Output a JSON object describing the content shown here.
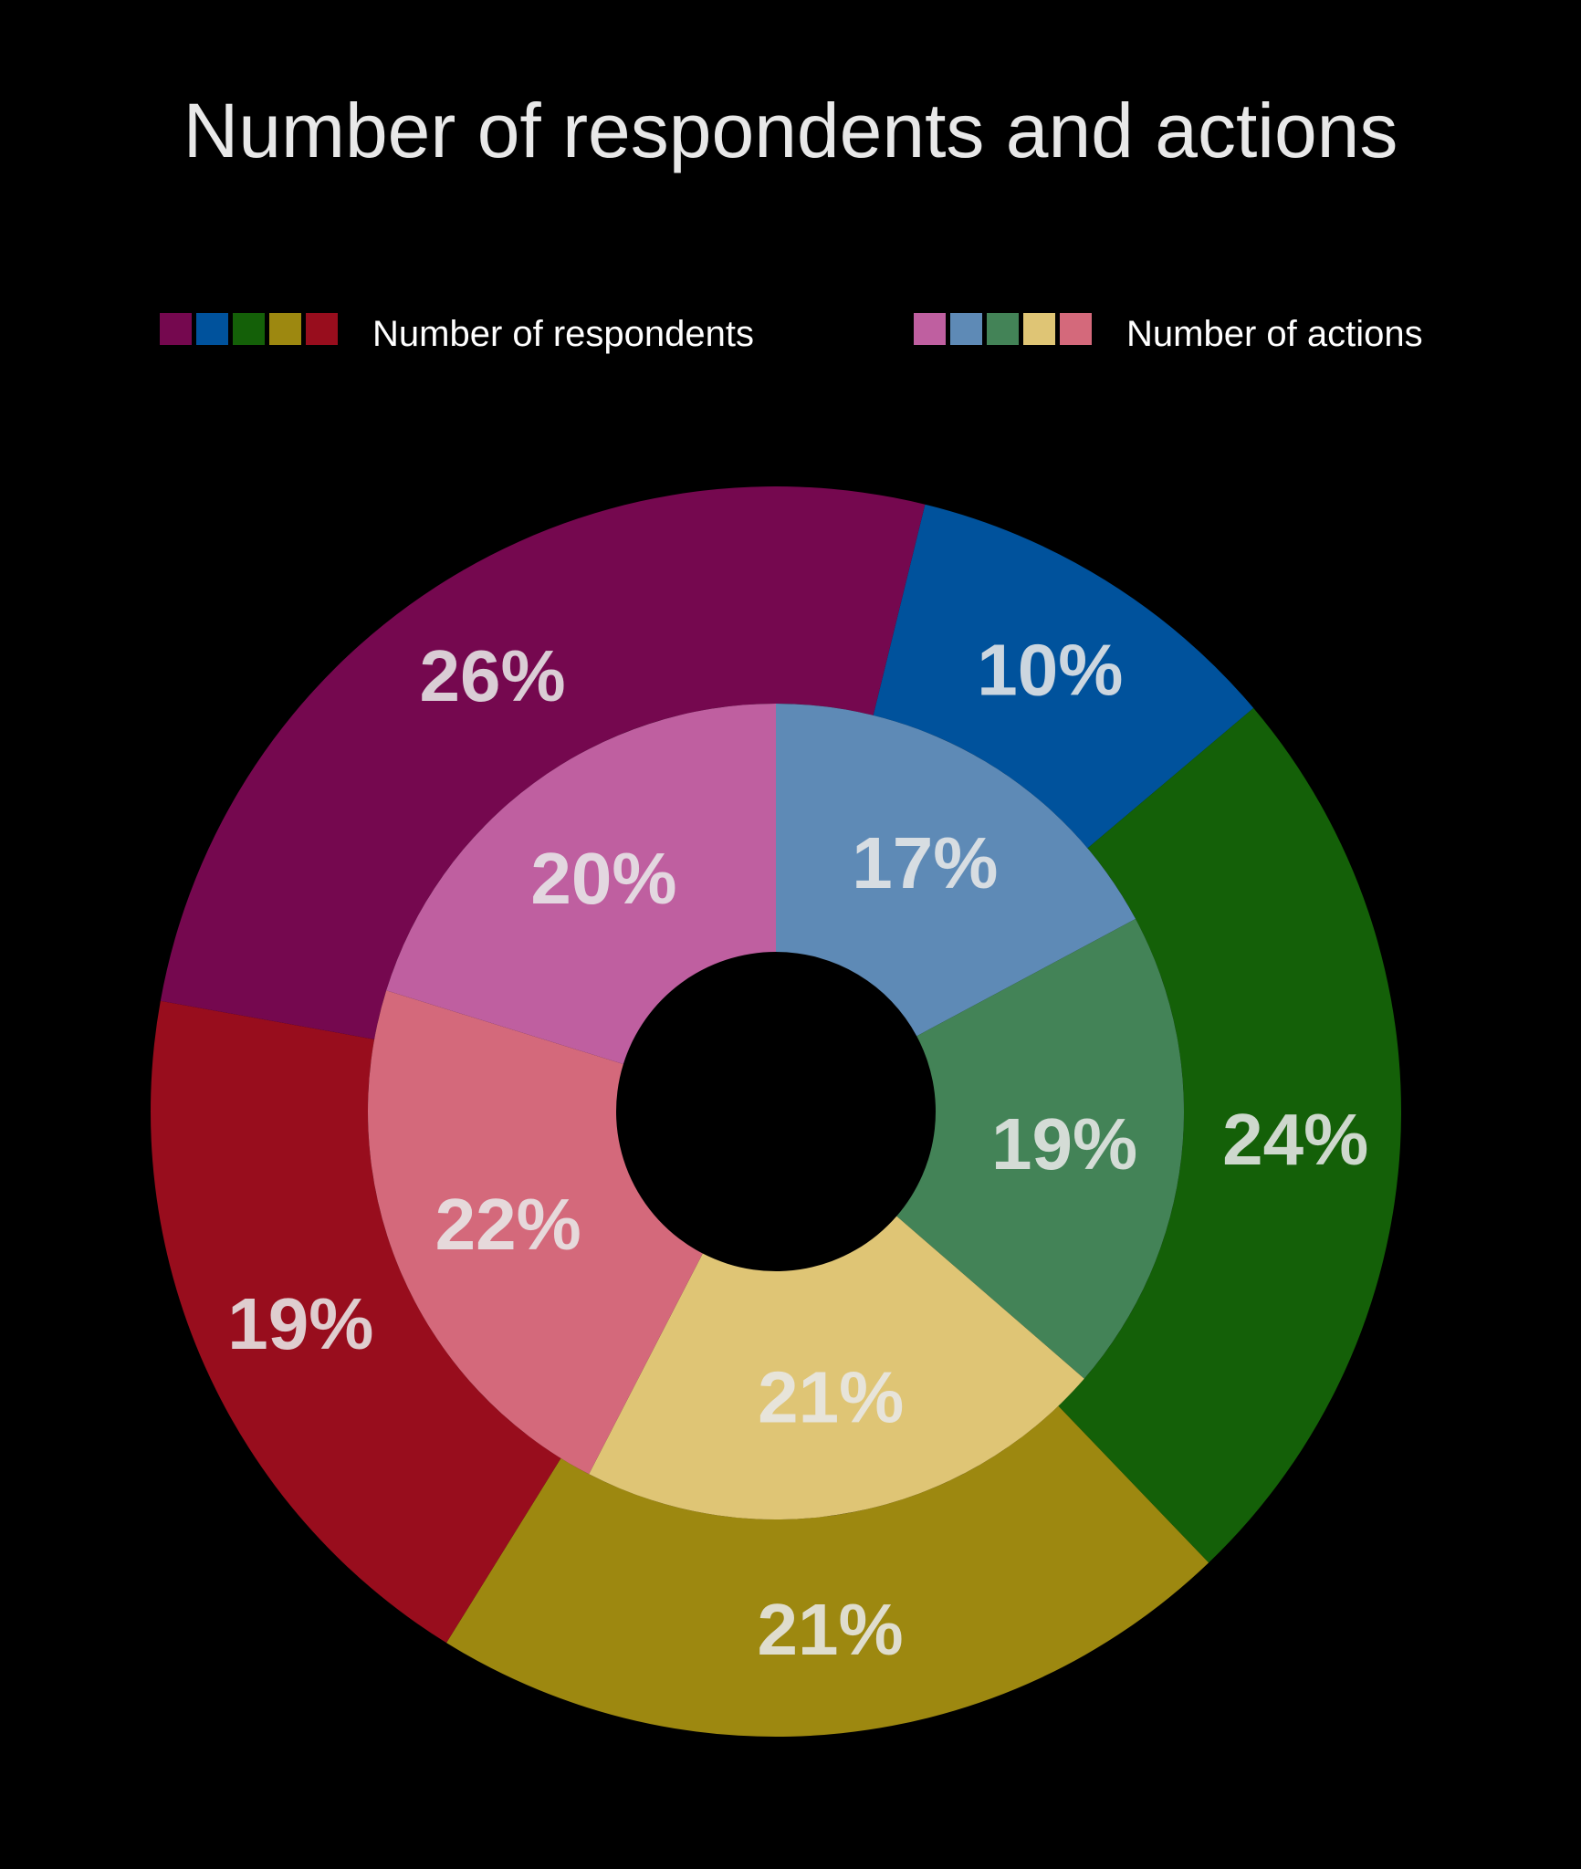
{
  "chart_data": {
    "type": "pie",
    "variant": "nested-donut",
    "title": "Number of respondents and actions",
    "legend": [
      {
        "label": "Number of respondents",
        "colors": [
          "#75084f",
          "#00529c",
          "#146008",
          "#9d8810",
          "#980d1d"
        ]
      },
      {
        "label": "Number of actions",
        "colors": [
          "#bf5fa0",
          "#5e8ab6",
          "#438357",
          "#dfc575",
          "#d4697b"
        ]
      }
    ],
    "series": [
      {
        "name": "Number of respondents",
        "ring": "outer",
        "values": [
          10,
          24,
          21,
          19,
          26
        ],
        "labels": [
          "10%",
          "24%",
          "21%",
          "19%",
          "26%"
        ],
        "colors": [
          "#00529c",
          "#146008",
          "#9d8810",
          "#980d1d",
          "#75084f"
        ]
      },
      {
        "name": "Number of actions",
        "ring": "inner",
        "values": [
          17,
          19,
          21,
          22,
          20
        ],
        "labels": [
          "17%",
          "19%",
          "21%",
          "22%",
          "20%"
        ],
        "colors": [
          "#5e8ab6",
          "#438357",
          "#dfc575",
          "#d4697b",
          "#bf5fa0"
        ]
      }
    ],
    "label_color": "#e8e8e8",
    "background": "#000000"
  }
}
